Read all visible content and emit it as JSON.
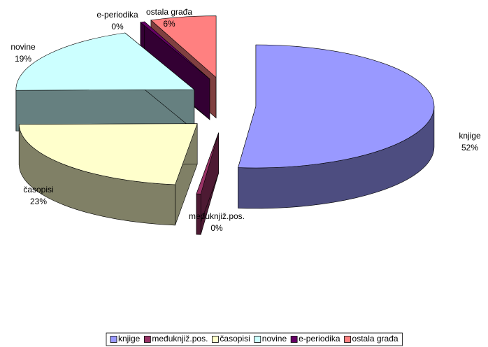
{
  "chart_data": {
    "type": "pie",
    "categories": [
      "knjige",
      "međuknjiž.pos.",
      "časopisi",
      "novine",
      "e-periodika",
      "ostala građa"
    ],
    "values": [
      52,
      0.4,
      23,
      19,
      0.4,
      6
    ],
    "value_labels": [
      "52%",
      "0%",
      "23%",
      "19%",
      "0%",
      "6%"
    ],
    "colors": [
      "#9999ff",
      "#993366",
      "#ffffcc",
      "#ccffff",
      "#660066",
      "#ff8080"
    ],
    "legend": "bottom"
  }
}
